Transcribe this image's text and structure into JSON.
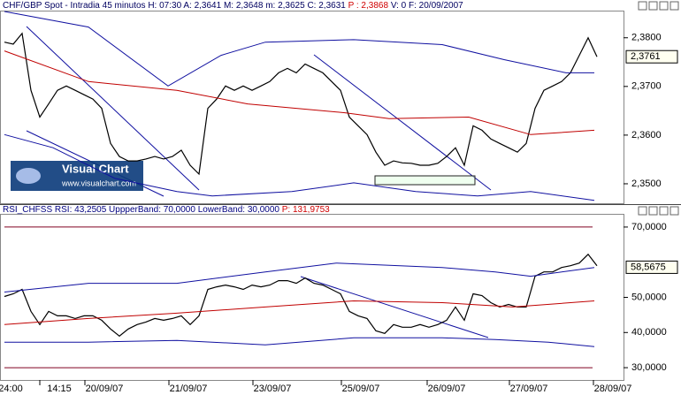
{
  "chart_data": [
    {
      "type": "line",
      "header": [
        "CHF/GBP Spot - Intradia 45 minutos  H: 07:30  A: 2,3641  M: 2,3648  m: 2,3625  C: 2,3631",
        "P : 2,3868",
        "V: 0  F: 20/09/2007"
      ],
      "x": [
        0,
        1,
        2,
        3,
        4,
        5,
        6,
        7,
        8,
        9,
        10,
        11,
        12,
        13,
        14,
        15,
        16,
        17,
        18,
        19,
        20,
        21,
        22,
        23,
        24,
        25,
        26,
        27,
        28,
        29,
        30,
        31,
        32,
        33,
        34,
        35,
        36,
        37,
        38,
        39,
        40,
        41,
        42,
        43,
        44,
        45,
        46,
        47,
        48,
        49,
        50,
        51,
        52,
        53,
        54,
        55,
        56,
        57,
        58,
        59,
        60,
        61,
        62,
        63,
        64,
        65,
        66,
        67
      ],
      "xlim": [
        0,
        70
      ],
      "series": [
        {
          "color": "#000000",
          "values": [
            2.3791,
            2.3787,
            2.3809,
            2.3692,
            2.3637,
            2.3664,
            2.3692,
            2.3701,
            2.3692,
            2.3683,
            2.3674,
            2.3655,
            2.3583,
            2.3556,
            2.3547,
            2.3547,
            2.3551,
            2.3556,
            2.3551,
            2.3556,
            2.3569,
            2.3538,
            2.352,
            2.3655,
            2.3674,
            2.3701,
            2.3692,
            2.3701,
            2.3692,
            2.3701,
            2.371,
            2.3728,
            2.3737,
            2.3728,
            2.3746,
            2.3737,
            2.3728,
            2.371,
            2.3692,
            2.3637,
            2.3619,
            2.3601,
            2.3565,
            2.3538,
            2.3547,
            2.3543,
            2.3542,
            2.3538,
            2.3538,
            2.3542,
            2.3556,
            2.3574,
            2.3538,
            2.3619,
            2.361,
            2.3592,
            2.3583,
            2.3574,
            2.3565,
            2.3583,
            2.3655,
            2.3692,
            2.3701,
            2.371,
            2.3728,
            2.3764,
            2.38,
            2.3761
          ]
        },
        {
          "color": "#1010a0",
          "x": [
            0,
            9.5,
            18.5,
            24.5,
            29.5,
            39.5,
            49.5,
            56.5,
            63.5,
            66.7
          ],
          "values": [
            2.3854,
            2.3822,
            2.3701,
            2.3764,
            2.3791,
            2.3796,
            2.3786,
            2.3755,
            2.3728,
            2.3728
          ]
        },
        {
          "color": "#1010a0",
          "x": [
            0,
            5.5,
            12.5,
            19.5,
            23.5,
            32.5,
            39.5,
            46.5,
            53.5,
            59.5,
            66.7
          ],
          "values": [
            2.3601,
            2.3574,
            2.3511,
            2.3484,
            2.3475,
            2.3484,
            2.3502,
            2.3484,
            2.3475,
            2.3484,
            2.3466
          ]
        },
        {
          "color": "#c00000",
          "x": [
            0,
            9.5,
            19.5,
            27.5,
            38.5,
            43.5,
            52.5,
            59.5,
            66.7
          ],
          "values": [
            2.3773,
            2.371,
            2.3692,
            2.3664,
            2.3646,
            2.3634,
            2.3637,
            2.3601,
            2.361
          ]
        }
      ],
      "ylim": [
        2.346,
        2.3854
      ],
      "yticks": [
        {
          "value": 2.35,
          "label": "2,3500"
        },
        {
          "value": 2.36,
          "label": "2,3600"
        },
        {
          "value": 2.37,
          "label": "2,3700"
        },
        {
          "value": 2.38,
          "label": "2,3800"
        }
      ],
      "last_value": 2.3761,
      "last_label": "2,3761",
      "watermark": {
        "title": "Visual Chart",
        "url": "www.visualchart.com"
      }
    },
    {
      "type": "line",
      "header": [
        "RSI_CHFSS  RSI: 43,2505  UppperBand: 70,0000  LowerBand: 30,0000",
        "P: 131,9753"
      ],
      "x": [
        0,
        1,
        2,
        3,
        4,
        5,
        6,
        7,
        8,
        9,
        10,
        11,
        12,
        13,
        14,
        15,
        16,
        17,
        18,
        19,
        20,
        21,
        22,
        23,
        24,
        25,
        26,
        27,
        28,
        29,
        30,
        31,
        32,
        33,
        34,
        35,
        36,
        37,
        38,
        39,
        40,
        41,
        42,
        43,
        44,
        45,
        46,
        47,
        48,
        49,
        50,
        51,
        52,
        53,
        54,
        55,
        56,
        57,
        58,
        59,
        60,
        61,
        62,
        63,
        64,
        65,
        66,
        67
      ],
      "xlim": [
        0,
        70
      ],
      "series": [
        {
          "color": "#000000",
          "values": [
            50.25,
            51,
            52.25,
            46,
            42.25,
            46,
            44.75,
            44.75,
            44,
            44.75,
            44.75,
            43.5,
            41,
            39,
            41,
            42.25,
            43,
            44,
            43.5,
            44,
            44.75,
            42.25,
            44.75,
            52.25,
            53,
            53.5,
            53,
            52.25,
            53.5,
            53,
            53.5,
            54.75,
            54.75,
            54,
            55.5,
            54,
            53.5,
            52.25,
            51,
            46,
            44.75,
            44,
            40.5,
            39.75,
            42.25,
            41.5,
            41.5,
            42.25,
            41.5,
            42.25,
            43.5,
            47.25,
            43.5,
            51,
            50.5,
            48.5,
            47.25,
            48,
            47.25,
            47.25,
            56,
            57.25,
            57.25,
            58.5,
            59,
            59.75,
            62.25,
            59
          ]
        },
        {
          "color": "#1010a0",
          "x": [
            0,
            9.5,
            19.5,
            29.5,
            37.5,
            49.5,
            55.5,
            59.5,
            66.7
          ],
          "values": [
            51.5,
            54,
            54,
            57.25,
            59.75,
            58.5,
            57.25,
            56,
            58.5
          ]
        },
        {
          "color": "#1010a0",
          "x": [
            0,
            9.5,
            19.5,
            29.5,
            39.5,
            49.5,
            55.5,
            61.5,
            66.7
          ],
          "values": [
            37.25,
            37.25,
            37.75,
            36.5,
            38.5,
            38.5,
            38,
            37.25,
            36
          ]
        },
        {
          "color": "#c00000",
          "x": [
            0,
            9.5,
            19.5,
            29.5,
            39.5,
            49.5,
            57.5,
            66.7
          ],
          "values": [
            42.25,
            44,
            45.5,
            47.25,
            49,
            48.5,
            47.25,
            49
          ]
        }
      ],
      "reference_lines": [
        70,
        30
      ],
      "reference_color": "#800020",
      "ylim": [
        26.5,
        73.5
      ],
      "yticks": [
        {
          "value": 30,
          "label": "30,0000"
        },
        {
          "value": 40,
          "label": "40,0000"
        },
        {
          "value": 50,
          "label": "50,0000"
        },
        {
          "value": 70,
          "label": "70,0000"
        }
      ],
      "xticks": [
        {
          "value": 0.7,
          "label": "24:00"
        },
        {
          "value": 6.2,
          "label": "14:15"
        },
        {
          "value": 11.3,
          "label": "20/09/07"
        },
        {
          "value": 20.8,
          "label": "21/09/07"
        },
        {
          "value": 30.3,
          "label": "23/09/07"
        },
        {
          "value": 40.3,
          "label": "25/09/07"
        },
        {
          "value": 50,
          "label": "26/09/07"
        },
        {
          "value": 59.3,
          "label": "27/09/07"
        },
        {
          "value": 68.8,
          "label": "28/09/07"
        }
      ],
      "last_value": 58.5675,
      "last_label": "58,5675"
    }
  ]
}
